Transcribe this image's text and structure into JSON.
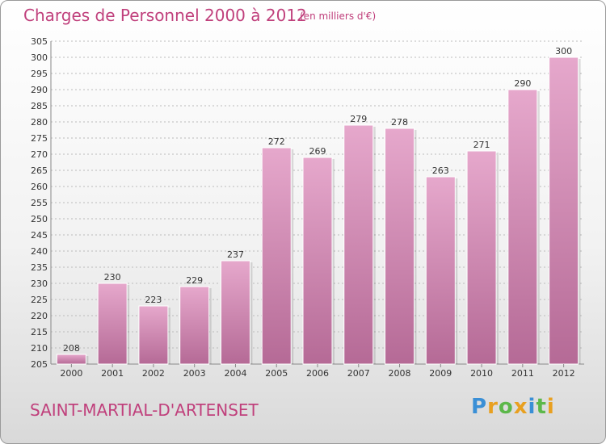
{
  "header": {
    "title": "Charges de Personnel 2000 à 2012",
    "subtitle": "(en milliers d'€)"
  },
  "footer": {
    "commune": "SAINT-MARTIAL-D'ARTENSET",
    "logo": "Proxiti"
  },
  "colors": {
    "bar": "#cc7aa6",
    "title": "#c0407c",
    "grid": "#bbbbbb"
  },
  "chart_data": {
    "type": "bar",
    "categories": [
      "2000",
      "2001",
      "2002",
      "2003",
      "2004",
      "2005",
      "2006",
      "2007",
      "2008",
      "2009",
      "2010",
      "2011",
      "2012"
    ],
    "values": [
      208,
      230,
      223,
      229,
      237,
      272,
      269,
      279,
      278,
      263,
      271,
      290,
      300
    ],
    "title": "Charges de Personnel 2000 à 2012",
    "ylim": [
      205,
      305
    ],
    "ytick_step": 5,
    "grid": true
  }
}
